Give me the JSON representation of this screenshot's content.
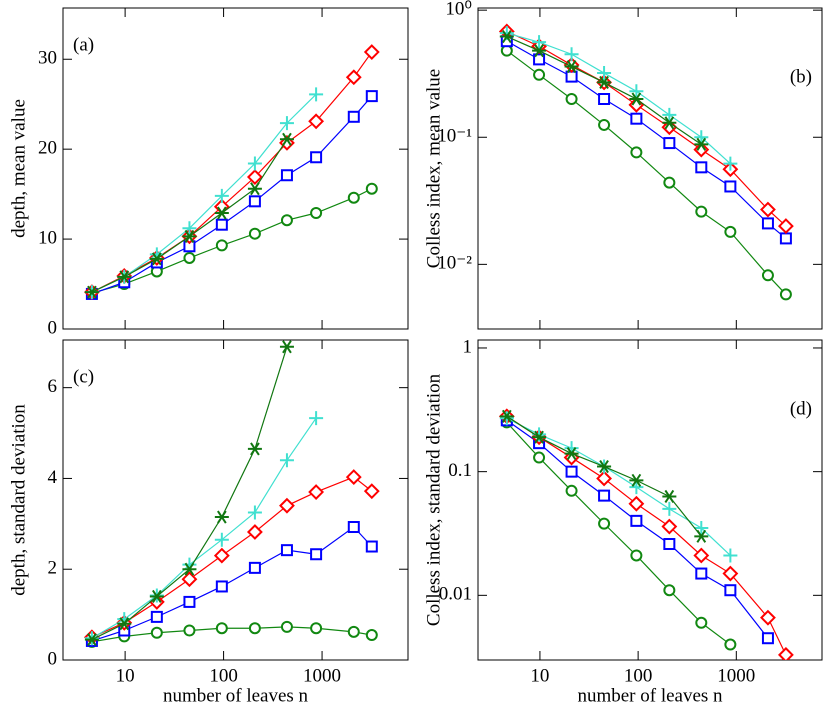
{
  "chart_data": [
    {
      "type": "line",
      "annotation": "(a)",
      "ylabel": "depth, mean value",
      "xscale": "log",
      "yscale": "linear",
      "show_xtick_labels": false,
      "xlim": [
        2.34,
        7460
      ],
      "xticks": [
        10,
        100,
        1000
      ],
      "ylim": [
        0,
        35.7
      ],
      "yticks": [
        0,
        10,
        20,
        30
      ],
      "series": [
        {
          "marker": "circle",
          "color": "#118811",
          "x": [
            4.6,
            9.8,
            21,
            45,
            96,
            208,
            440,
            870,
            2100,
            3200
          ],
          "values": [
            4,
            5,
            6.4,
            7.9,
            9.3,
            10.6,
            12.1,
            12.9,
            14.6,
            15.6
          ]
        },
        {
          "marker": "square",
          "color": "#0000ff",
          "x": [
            4.6,
            9.8,
            21,
            45,
            96,
            208,
            440,
            870,
            2100,
            3200
          ],
          "values": [
            3.9,
            5.2,
            7.4,
            9.2,
            11.6,
            14.2,
            17.1,
            19.1,
            23.6,
            25.9
          ]
        },
        {
          "marker": "diamond",
          "color": "#ff0000",
          "x": [
            4.6,
            9.8,
            21,
            45,
            96,
            208,
            440,
            870,
            2100,
            3200
          ],
          "values": [
            4.1,
            5.9,
            7.9,
            10.3,
            13.6,
            16.9,
            20.7,
            23.1,
            28,
            30.8
          ]
        },
        {
          "marker": "plus",
          "color": "#40e0d0",
          "x": [
            4.6,
            9.8,
            21,
            45,
            96,
            208,
            440,
            870
          ],
          "values": [
            4.1,
            5.8,
            8.3,
            11.2,
            14.8,
            18.4,
            22.9,
            26.1
          ]
        },
        {
          "marker": "star",
          "color": "#117711",
          "x": [
            4.6,
            9.8,
            21,
            45,
            96,
            208,
            440
          ],
          "values": [
            4.1,
            5.8,
            7.8,
            10.3,
            12.9,
            15.6,
            21.1
          ]
        }
      ]
    },
    {
      "type": "line",
      "annotation": "(b)",
      "ylabel": "Colless index, mean value",
      "xscale": "log",
      "yscale": "log",
      "show_xtick_labels": false,
      "xlim": [
        2.34,
        7460
      ],
      "xticks": [
        10,
        100,
        1000
      ],
      "ylim": [
        0.0031,
        1.04
      ],
      "yticks": [
        {
          "value": 0.01,
          "label": "10⁻²"
        },
        {
          "value": 0.1,
          "label": "10⁻¹"
        },
        {
          "value": 1,
          "label": "10⁰"
        }
      ],
      "series": [
        {
          "marker": "circle",
          "color": "#118811",
          "x": [
            4.6,
            9.8,
            21,
            45,
            96,
            208,
            440,
            870,
            2100,
            3200
          ],
          "values": [
            0.48,
            0.31,
            0.2,
            0.125,
            0.076,
            0.044,
            0.026,
            0.018,
            0.0082,
            0.0058
          ]
        },
        {
          "marker": "square",
          "color": "#0000ff",
          "x": [
            4.6,
            9.8,
            21,
            45,
            96,
            208,
            440,
            870,
            2100,
            3200
          ],
          "values": [
            0.57,
            0.41,
            0.3,
            0.2,
            0.14,
            0.09,
            0.058,
            0.041,
            0.021,
            0.016
          ]
        },
        {
          "marker": "diamond",
          "color": "#ff0000",
          "x": [
            4.6,
            9.8,
            21,
            45,
            96,
            208,
            440,
            870,
            2100,
            3200
          ],
          "values": [
            0.68,
            0.52,
            0.37,
            0.27,
            0.18,
            0.12,
            0.08,
            0.056,
            0.027,
            0.02
          ]
        },
        {
          "marker": "plus",
          "color": "#40e0d0",
          "x": [
            4.6,
            9.8,
            21,
            45,
            96,
            208,
            440,
            870
          ],
          "values": [
            0.66,
            0.56,
            0.45,
            0.32,
            0.23,
            0.15,
            0.1,
            0.062
          ]
        },
        {
          "marker": "star",
          "color": "#117711",
          "x": [
            4.6,
            9.8,
            21,
            45,
            96,
            208,
            440
          ],
          "values": [
            0.62,
            0.48,
            0.36,
            0.27,
            0.2,
            0.13,
            0.088
          ]
        }
      ]
    },
    {
      "type": "line",
      "annotation": "(c)",
      "ylabel": "depth, standard deviation",
      "xlabel": "number of leaves n",
      "xscale": "log",
      "yscale": "linear",
      "show_xtick_labels": true,
      "xlim": [
        2.34,
        7460
      ],
      "xticks": [
        10,
        100,
        1000
      ],
      "ylim": [
        0,
        7.05
      ],
      "yticks": [
        0,
        2,
        4,
        6
      ],
      "series": [
        {
          "marker": "circle",
          "color": "#118811",
          "x": [
            4.6,
            9.8,
            21,
            45,
            96,
            208,
            440,
            870,
            2100,
            3200
          ],
          "values": [
            0.4,
            0.52,
            0.6,
            0.65,
            0.7,
            0.7,
            0.73,
            0.7,
            0.62,
            0.55
          ]
        },
        {
          "marker": "square",
          "color": "#0000ff",
          "x": [
            4.6,
            9.8,
            21,
            45,
            96,
            208,
            440,
            870,
            2100,
            3200
          ],
          "values": [
            0.42,
            0.65,
            0.95,
            1.28,
            1.62,
            2.03,
            2.42,
            2.33,
            2.93,
            2.5
          ]
        },
        {
          "marker": "diamond",
          "color": "#ff0000",
          "x": [
            4.6,
            9.8,
            21,
            45,
            96,
            208,
            440,
            870,
            2100,
            3200
          ],
          "values": [
            0.5,
            0.82,
            1.28,
            1.78,
            2.3,
            2.82,
            3.4,
            3.7,
            4.03,
            3.72
          ]
        },
        {
          "marker": "plus",
          "color": "#40e0d0",
          "x": [
            4.6,
            9.8,
            21,
            45,
            96,
            208,
            440,
            870
          ],
          "values": [
            0.48,
            0.9,
            1.42,
            2.1,
            2.65,
            3.25,
            4.4,
            5.33
          ]
        },
        {
          "marker": "star",
          "color": "#117711",
          "x": [
            4.6,
            9.8,
            21,
            45,
            96,
            208,
            440
          ],
          "values": [
            0.45,
            0.8,
            1.4,
            2.0,
            3.15,
            4.65,
            6.9
          ]
        }
      ]
    },
    {
      "type": "line",
      "annotation": "(d)",
      "ylabel": "Colless index, standard deviation",
      "xlabel": "number of leaves n",
      "xscale": "log",
      "yscale": "log",
      "show_xtick_labels": true,
      "xlim": [
        2.34,
        7460
      ],
      "xticks": [
        10,
        100,
        1000
      ],
      "ylim": [
        0.003,
        1.16
      ],
      "yticks": [
        0.01,
        0.1,
        1
      ],
      "series": [
        {
          "marker": "circle",
          "color": "#118811",
          "x": [
            4.6,
            9.8,
            21,
            45,
            96,
            208,
            440,
            870
          ],
          "values": [
            0.25,
            0.13,
            0.07,
            0.038,
            0.021,
            0.011,
            0.006,
            0.004
          ]
        },
        {
          "marker": "square",
          "color": "#0000ff",
          "x": [
            4.6,
            9.8,
            21,
            45,
            96,
            208,
            440,
            870,
            2100
          ],
          "values": [
            0.26,
            0.17,
            0.1,
            0.064,
            0.04,
            0.026,
            0.015,
            0.011,
            0.0045
          ]
        },
        {
          "marker": "diamond",
          "color": "#ff0000",
          "x": [
            4.6,
            9.8,
            21,
            45,
            96,
            208,
            440,
            870,
            2100,
            3200
          ],
          "values": [
            0.28,
            0.19,
            0.13,
            0.088,
            0.055,
            0.036,
            0.021,
            0.015,
            0.0066,
            0.0033
          ]
        },
        {
          "marker": "plus",
          "color": "#40e0d0",
          "x": [
            4.6,
            9.8,
            21,
            45,
            96,
            208,
            440,
            870
          ],
          "values": [
            0.27,
            0.2,
            0.155,
            0.11,
            0.075,
            0.05,
            0.035,
            0.021
          ]
        },
        {
          "marker": "star",
          "color": "#117711",
          "x": [
            4.6,
            9.8,
            21,
            45,
            96,
            208,
            440
          ],
          "values": [
            0.28,
            0.19,
            0.14,
            0.11,
            0.085,
            0.063,
            0.03
          ]
        }
      ]
    }
  ]
}
